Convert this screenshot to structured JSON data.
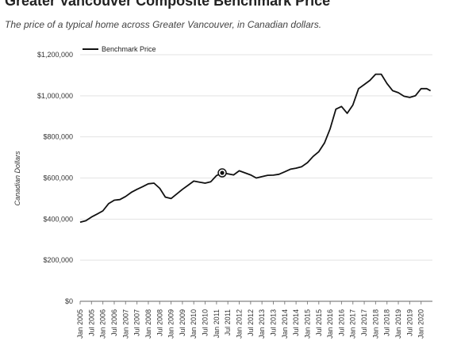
{
  "chart_data": {
    "type": "line",
    "title": "Greater Vancouver Composite Benchmark Price",
    "subtitle": "The price of a typical home across Greater Vancouver, in Canadian dollars.",
    "xlabel": "",
    "ylabel": "Canadian Dollars",
    "ylim": [
      0,
      1200000
    ],
    "y_ticks": [
      "$0",
      "$200,000",
      "$400,000",
      "$600,000",
      "$800,000",
      "$1,000,000",
      "$1,200,000"
    ],
    "y_tick_values": [
      0,
      200000,
      400000,
      600000,
      800000,
      1000000,
      1200000
    ],
    "x_tick_labels": [
      "Jan 2005",
      "Jul 2005",
      "Jan 2006",
      "Jul 2006",
      "Jan 2007",
      "Jul 2007",
      "Jan 2008",
      "Jul 2008",
      "Jan 2009",
      "Jul 2009",
      "Jan 2010",
      "Jul 2010",
      "Jan 2011",
      "Jul 2011",
      "Jan 2012",
      "Jul 2012",
      "Jan 2013",
      "Jul 2013",
      "Jan 2014",
      "Jul 2014",
      "Jan 2015",
      "Jul 2015",
      "Jan 2016",
      "Jul 2016",
      "Jan 2017",
      "Jul 2017",
      "Jan 2018",
      "Jul 2018",
      "Jan 2019",
      "Jul 2019",
      "Jan 2020"
    ],
    "grid": true,
    "legend_position": "top-left",
    "series": [
      {
        "name": "Benchmark Price",
        "color": "#111111",
        "x": [
          "2005-01",
          "2005-04",
          "2005-07",
          "2005-10",
          "2006-01",
          "2006-04",
          "2006-07",
          "2006-10",
          "2007-01",
          "2007-04",
          "2007-07",
          "2007-10",
          "2008-01",
          "2008-04",
          "2008-07",
          "2008-10",
          "2009-01",
          "2009-04",
          "2009-07",
          "2009-10",
          "2010-01",
          "2010-04",
          "2010-07",
          "2010-10",
          "2011-01",
          "2011-04",
          "2011-07",
          "2011-10",
          "2012-01",
          "2012-04",
          "2012-07",
          "2012-10",
          "2013-01",
          "2013-04",
          "2013-07",
          "2013-10",
          "2014-01",
          "2014-04",
          "2014-07",
          "2014-10",
          "2015-01",
          "2015-04",
          "2015-07",
          "2015-10",
          "2016-01",
          "2016-04",
          "2016-07",
          "2016-10",
          "2017-01",
          "2017-04",
          "2017-07",
          "2017-10",
          "2018-01",
          "2018-04",
          "2018-07",
          "2018-10",
          "2019-01",
          "2019-04",
          "2019-07",
          "2019-10",
          "2020-01",
          "2020-04",
          "2020-06"
        ],
        "values": [
          385000,
          392000,
          410000,
          425000,
          440000,
          475000,
          492000,
          495000,
          510000,
          530000,
          545000,
          558000,
          572000,
          575000,
          550000,
          507000,
          500000,
          522000,
          545000,
          565000,
          585000,
          580000,
          575000,
          582000,
          612000,
          625000,
          620000,
          615000,
          635000,
          625000,
          615000,
          600000,
          607000,
          613000,
          614000,
          618000,
          630000,
          643000,
          648000,
          655000,
          675000,
          705000,
          728000,
          770000,
          840000,
          935000,
          948000,
          915000,
          955000,
          1035000,
          1055000,
          1075000,
          1105000,
          1105000,
          1060000,
          1025000,
          1015000,
          998000,
          992000,
          1000000,
          1035000,
          1035000,
          1025000
        ]
      }
    ],
    "highlight_marker": {
      "x": "2011-04",
      "value": 625000
    }
  }
}
